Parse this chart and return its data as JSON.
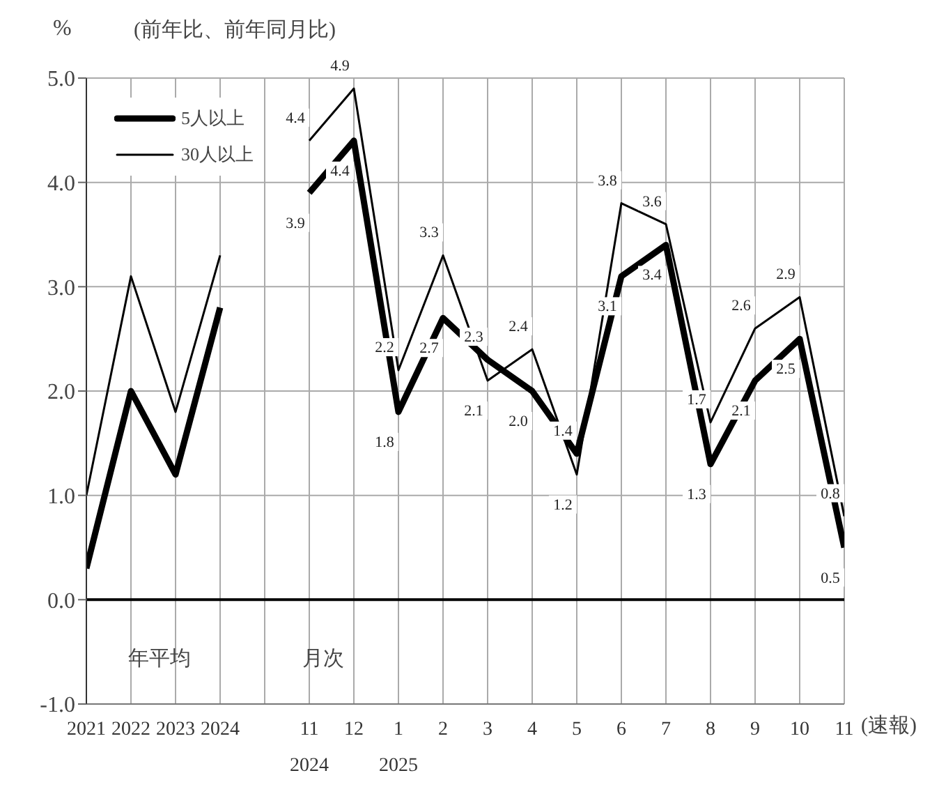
{
  "chart_data": {
    "type": "line",
    "subtitle": "(前年比、前年同月比)",
    "ylabel": "%",
    "categories": [
      "2021",
      "2022",
      "2023",
      "2024",
      null,
      "11\n2024",
      "12",
      "1\n2025",
      "2",
      "3",
      "4",
      "5",
      "6",
      "7",
      "8",
      "9",
      "10",
      "11"
    ],
    "series": [
      {
        "name": "5人以上",
        "color": "#000000",
        "values": [
          0.3,
          2.0,
          1.2,
          2.8,
          null,
          3.9,
          4.4,
          1.8,
          2.7,
          2.3,
          2.0,
          1.4,
          3.1,
          3.4,
          1.3,
          2.1,
          2.5,
          0.5
        ],
        "value_labels": [
          null,
          null,
          null,
          null,
          null,
          "3.9",
          "4.4",
          "1.8",
          "2.7",
          "2.3",
          "2.0",
          "1.4",
          "3.1",
          "3.4",
          "1.3",
          "2.1",
          "2.5",
          "0.5"
        ]
      },
      {
        "name": "30人以上",
        "color": "#000000",
        "values": [
          1.0,
          3.1,
          1.8,
          3.3,
          null,
          4.4,
          4.9,
          2.2,
          3.3,
          2.1,
          2.4,
          1.2,
          3.8,
          3.6,
          1.7,
          2.6,
          2.9,
          0.8
        ],
        "value_labels": [
          null,
          null,
          null,
          null,
          null,
          "4.4",
          "4.9",
          "2.2",
          "3.3",
          "2.1",
          "2.4",
          "1.2",
          "3.8",
          "3.6",
          "1.7",
          "2.6",
          "2.9",
          "0.8"
        ]
      }
    ],
    "ylim": [
      -1,
      5
    ],
    "yticks": [
      {
        "value": -1,
        "label": "-1.0"
      },
      {
        "value": 0,
        "label": "0.0"
      },
      {
        "value": 1,
        "label": "1.0"
      },
      {
        "value": 2,
        "label": "2.0"
      },
      {
        "value": 3,
        "label": "3.0"
      },
      {
        "value": 4,
        "label": "4.0"
      },
      {
        "value": 5,
        "label": "5.0"
      }
    ],
    "ref_lines": [
      {
        "axis": "y",
        "value": 0,
        "color": "#000000"
      }
    ],
    "annotations": [
      "年平均",
      "月次",
      "(速報)"
    ],
    "grid": true,
    "legend": "top left",
    "marker": "none",
    "line_style": "solid"
  }
}
